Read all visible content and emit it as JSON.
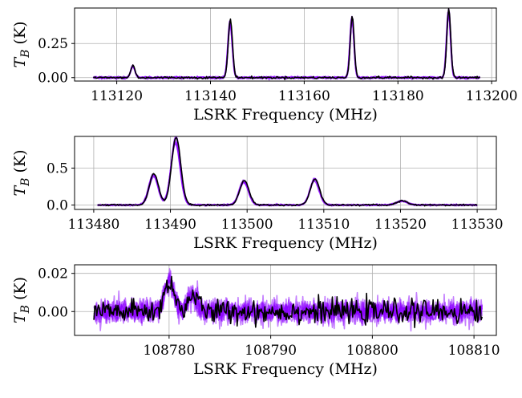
{
  "figure": {
    "background": "#ffffff",
    "grid_color": "#b0b0b0",
    "model_color": "#8b00ff",
    "data_color": "#000000"
  },
  "chart_data": [
    {
      "type": "line",
      "title": "",
      "xlabel": "LSRK Frequency (MHz)",
      "ylabel": "T_B (K)",
      "xlim": [
        113111,
        113201
      ],
      "ylim": [
        -0.025,
        0.51
      ],
      "xticks": [
        113120,
        113140,
        113160,
        113180,
        113200
      ],
      "xtick_labels": [
        "113120",
        "113140",
        "113160",
        "113180",
        "113200"
      ],
      "yticks": [
        0.0,
        0.25
      ],
      "ytick_labels": [
        "0.00",
        "0.25"
      ],
      "grid": true,
      "x_range": [
        113115,
        113197.5
      ],
      "noise_sigma": 0.004,
      "peaks": [
        {
          "center": 113123.4,
          "amplitude": 0.085,
          "width": 0.45
        },
        {
          "center": 113144.2,
          "amplitude": 0.41,
          "width": 0.45
        },
        {
          "center": 113170.2,
          "amplitude": 0.43,
          "width": 0.42
        },
        {
          "center": 113190.8,
          "amplitude": 0.48,
          "width": 0.42
        }
      ],
      "series": [
        {
          "role": "model",
          "count": 8,
          "color": "#8b00ff",
          "opacity": 0.55
        },
        {
          "role": "data",
          "count": 1,
          "color": "#000000",
          "opacity": 1.0
        }
      ]
    },
    {
      "type": "line",
      "title": "",
      "xlabel": "LSRK Frequency (MHz)",
      "ylabel": "T_B (K)",
      "xlim": [
        113477.5,
        113532.5
      ],
      "ylim": [
        -0.06,
        0.93
      ],
      "xticks": [
        113480,
        113490,
        113500,
        113510,
        113520,
        113530
      ],
      "xtick_labels": [
        "113480",
        "113490",
        "113500",
        "113510",
        "113520",
        "113530"
      ],
      "yticks": [
        0.0,
        0.5
      ],
      "ytick_labels": [
        "0.0",
        "0.5"
      ],
      "grid": true,
      "x_range": [
        113480.5,
        113530.0
      ],
      "noise_sigma": 0.005,
      "peaks": [
        {
          "center": 113487.8,
          "amplitude": 0.41,
          "width": 0.6
        },
        {
          "center": 113490.7,
          "amplitude": 0.88,
          "width": 0.6
        },
        {
          "center": 113499.6,
          "amplitude": 0.32,
          "width": 0.6
        },
        {
          "center": 113508.8,
          "amplitude": 0.34,
          "width": 0.6
        },
        {
          "center": 113520.2,
          "amplitude": 0.055,
          "width": 0.7
        }
      ],
      "series": [
        {
          "role": "model",
          "count": 8,
          "color": "#8b00ff",
          "opacity": 0.55
        },
        {
          "role": "data",
          "count": 1,
          "color": "#000000",
          "opacity": 1.0
        }
      ]
    },
    {
      "type": "line",
      "title": "",
      "xlabel": "LSRK Frequency (MHz)",
      "ylabel": "T_B (K)",
      "xlim": [
        108770.7,
        108812.2
      ],
      "ylim": [
        -0.0125,
        0.0245
      ],
      "xticks": [
        108780,
        108790,
        108800,
        108810
      ],
      "xtick_labels": [
        "108780",
        "108790",
        "108800",
        "108810"
      ],
      "yticks": [
        0.0,
        0.02
      ],
      "ytick_labels": [
        "0.00",
        "0.02"
      ],
      "grid": true,
      "x_range": [
        108772.6,
        108810.8
      ],
      "noise_sigma": 0.003,
      "peaks": [
        {
          "center": 108780.0,
          "amplitude": 0.016,
          "width": 0.45
        },
        {
          "center": 108782.3,
          "amplitude": 0.009,
          "width": 0.45
        }
      ],
      "series": [
        {
          "role": "model",
          "count": 8,
          "color": "#8b00ff",
          "opacity": 0.5
        },
        {
          "role": "data",
          "count": 1,
          "color": "#000000",
          "opacity": 1.0
        }
      ]
    }
  ]
}
